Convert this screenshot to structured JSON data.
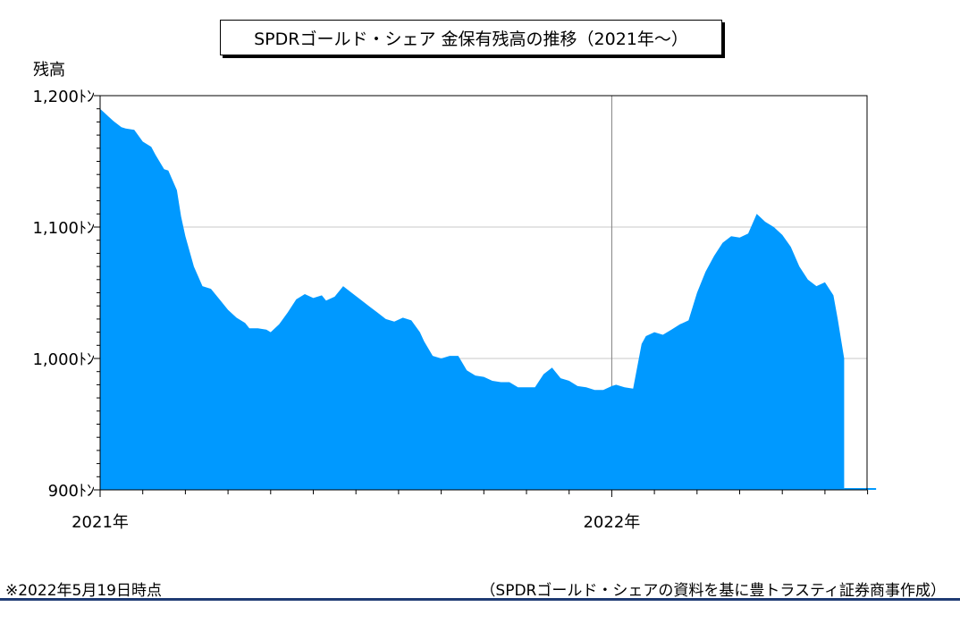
{
  "chart_data": {
    "type": "area",
    "title": "SPDRゴールド・シェア 金保有残高の推移（2021年〜）",
    "ylabel": "残高",
    "ylim": [
      900,
      1200
    ],
    "yticks": [
      900,
      1000,
      1100,
      1200
    ],
    "ytick_labels": [
      "900ﾄﾝ",
      "1,000ﾄﾝ",
      "1,100ﾄﾝ",
      "1,200ﾄﾝ"
    ],
    "x_labels": [
      {
        "label": "2021年",
        "month": 0
      },
      {
        "label": "2022年",
        "month": 12
      }
    ],
    "xlim_months": [
      0,
      18.2
    ],
    "grid": true,
    "color": "#0099ff",
    "series": [
      {
        "x": [
          0.0,
          0.1,
          0.2,
          0.3,
          0.5,
          0.6,
          0.8,
          1.0,
          1.2,
          1.3,
          1.5,
          1.6,
          1.8,
          1.9,
          2.0,
          2.2,
          2.4,
          2.6,
          2.8,
          3.0,
          3.2,
          3.4,
          3.5,
          3.7,
          3.9,
          4.0,
          4.2,
          4.4,
          4.6,
          4.8,
          5.0,
          5.2,
          5.3,
          5.5,
          5.7,
          5.9,
          6.1,
          6.3,
          6.5,
          6.7,
          6.9,
          7.1,
          7.3,
          7.5,
          7.6,
          7.8,
          8.0,
          8.2,
          8.4,
          8.6,
          8.8,
          9.0,
          9.2,
          9.4,
          9.6,
          9.8,
          10.0,
          10.2,
          10.4,
          10.6,
          10.8,
          11.0,
          11.2,
          11.4,
          11.6,
          11.8,
          12.0,
          12.1,
          12.3,
          12.5,
          12.7,
          12.8,
          13.0,
          13.2,
          13.4,
          13.6,
          13.8,
          14.0,
          14.2,
          14.4,
          14.6,
          14.8,
          15.0,
          15.2,
          15.4,
          15.6,
          15.8,
          16.0,
          16.2,
          16.4,
          16.6,
          16.8,
          17.0,
          17.2,
          17.3,
          17.4,
          17.45
        ],
        "y": [
          1190,
          1187,
          1184,
          1181,
          1176,
          1175,
          1174,
          1165,
          1161,
          1155,
          1144,
          1143,
          1128,
          1108,
          1093,
          1070,
          1055,
          1053,
          1045,
          1037,
          1031,
          1027,
          1023,
          1023,
          1022,
          1020,
          1026,
          1035,
          1045,
          1049,
          1046,
          1048,
          1044,
          1047,
          1055,
          1050,
          1045,
          1040,
          1035,
          1030,
          1028,
          1031,
          1029,
          1020,
          1013,
          1002,
          1000,
          1002,
          1002,
          991,
          987,
          986,
          983,
          982,
          982,
          978,
          978,
          978,
          988,
          993,
          985,
          983,
          979,
          978,
          976,
          976,
          979,
          980,
          978,
          977,
          1011,
          1017,
          1020,
          1018,
          1022,
          1026,
          1029,
          1050,
          1066,
          1078,
          1088,
          1093,
          1092,
          1095,
          1110,
          1104,
          1100,
          1094,
          1085,
          1070,
          1060,
          1055,
          1058,
          1048,
          1030,
          1010,
          1000
        ]
      }
    ]
  },
  "footnote": "※2022年5月19日時点",
  "source": "（SPDRゴールド・シェアの資料を基に豊トラスティ証券商事作成）"
}
